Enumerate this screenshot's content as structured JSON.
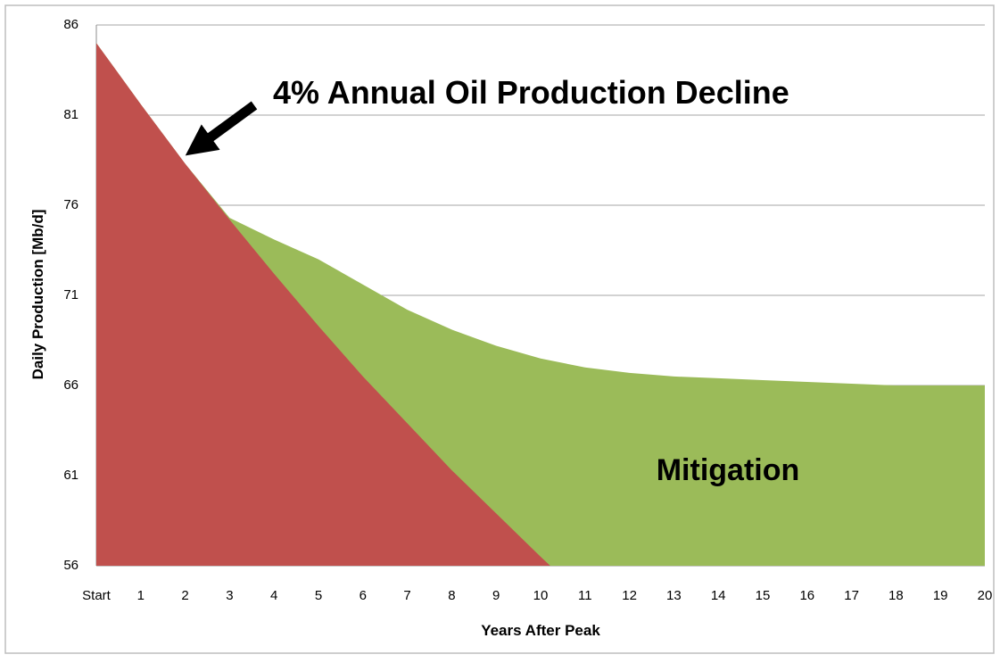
{
  "chart_data": {
    "type": "area",
    "categories": [
      "Start",
      "1",
      "2",
      "3",
      "4",
      "5",
      "6",
      "7",
      "8",
      "9",
      "10",
      "11",
      "12",
      "13",
      "14",
      "15",
      "16",
      "17",
      "18",
      "19",
      "20"
    ],
    "series": [
      {
        "color": "#9bbb59",
        "values": [
          85,
          81.6,
          78.3,
          75.3,
          74.1,
          73.0,
          71.6,
          70.2,
          69.1,
          68.2,
          67.5,
          67.0,
          66.7,
          66.5,
          66.4,
          66.3,
          66.2,
          66.1,
          66.0,
          66.0,
          66.0
        ]
      },
      {
        "color": "#c0504d",
        "values": [
          85,
          81.6,
          78.3,
          75.2,
          72.2,
          69.3,
          66.5,
          63.9,
          61.3,
          58.9,
          56.5,
          54.2,
          null,
          null,
          null,
          null,
          null,
          null,
          null,
          null,
          null
        ]
      }
    ],
    "ylim": [
      56,
      86
    ],
    "yticks": [
      56,
      61,
      66,
      71,
      76,
      81,
      86
    ],
    "grid": true,
    "x_label": "Years After Peak",
    "y_label": "Daily Production  [Mb/d]",
    "annotations": [
      "4% Annual Oil Production Decline",
      "Mitigation"
    ]
  }
}
